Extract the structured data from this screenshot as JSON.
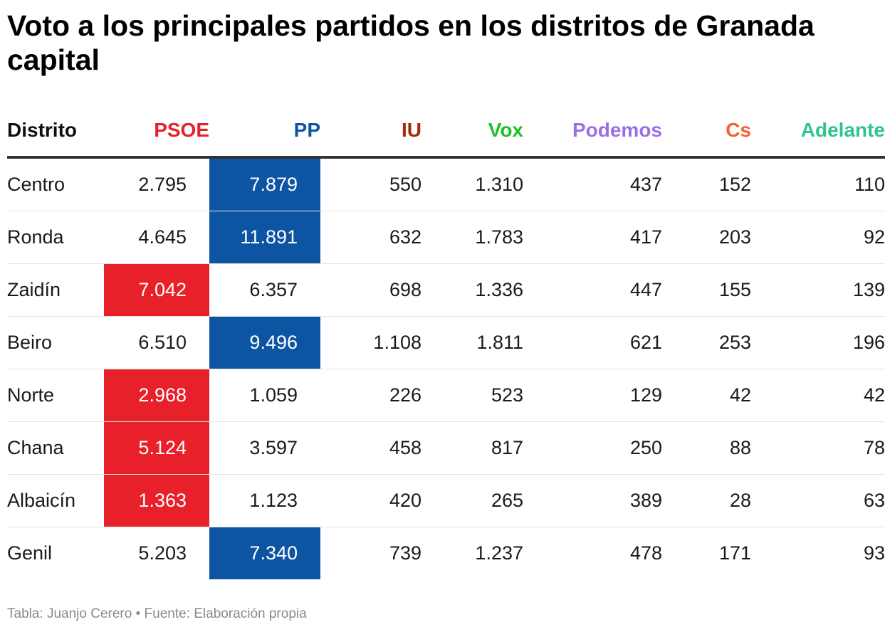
{
  "title": "Voto a los principales partidos en los distritos de Granada capital",
  "footer": "Tabla: Juanjo Cerero • Fuente: Elaboración propia",
  "chart_data": {
    "type": "table",
    "columns": [
      {
        "label": "Distrito",
        "color": "#111111"
      },
      {
        "label": "PSOE",
        "color": "#e8202a"
      },
      {
        "label": "PP",
        "color": "#0d55a3"
      },
      {
        "label": "IU",
        "color": "#a52a0a"
      },
      {
        "label": "Vox",
        "color": "#1fbf2a"
      },
      {
        "label": "Podemos",
        "color": "#9b6ee8"
      },
      {
        "label": "Cs",
        "color": "#f5602d"
      },
      {
        "label": "Adelante",
        "color": "#2ec48a"
      }
    ],
    "rows": [
      {
        "cells": [
          "Centro",
          "2.795",
          "7.879",
          "550",
          "1.310",
          "437",
          "152",
          "110"
        ],
        "winner": "PP"
      },
      {
        "cells": [
          "Ronda",
          "4.645",
          "11.891",
          "632",
          "1.783",
          "417",
          "203",
          "92"
        ],
        "winner": "PP"
      },
      {
        "cells": [
          "Zaidín",
          "7.042",
          "6.357",
          "698",
          "1.336",
          "447",
          "155",
          "139"
        ],
        "winner": "PSOE"
      },
      {
        "cells": [
          "Beiro",
          "6.510",
          "9.496",
          "1.108",
          "1.811",
          "621",
          "253",
          "196"
        ],
        "winner": "PP"
      },
      {
        "cells": [
          "Norte",
          "2.968",
          "1.059",
          "226",
          "523",
          "129",
          "42",
          "42"
        ],
        "winner": "PSOE"
      },
      {
        "cells": [
          "Chana",
          "5.124",
          "3.597",
          "458",
          "817",
          "250",
          "88",
          "78"
        ],
        "winner": "PSOE"
      },
      {
        "cells": [
          "Albaicín",
          "1.363",
          "1.123",
          "420",
          "265",
          "389",
          "28",
          "63"
        ],
        "winner": "PSOE"
      },
      {
        "cells": [
          "Genil",
          "5.203",
          "7.340",
          "739",
          "1.237",
          "478",
          "171",
          "93"
        ],
        "winner": "PP"
      }
    ],
    "highlight_colors": {
      "PSOE": "#e8202a",
      "PP": "#0d55a3"
    }
  }
}
